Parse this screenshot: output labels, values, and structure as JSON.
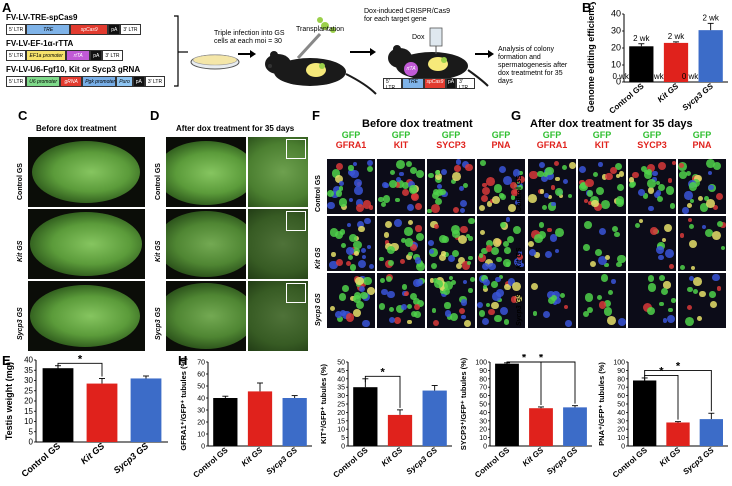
{
  "panels": {
    "A": "A",
    "B": "B",
    "C": "C",
    "D": "D",
    "E": "E",
    "F": "F",
    "G": "G",
    "H": "H"
  },
  "panelA": {
    "construct1_title": "FV-LV-TRE-spCas9",
    "construct2_title": "FV-LV-EF-1α-rTTA",
    "construct3_title": "FV-LV-U6-Fgf10, Kit or Sycp3 gRNA",
    "ltr5": "5' LTR",
    "ltr3": "3' LTR",
    "tre": "TRE",
    "spcas9": "spCas9",
    "pa": "pA",
    "ef1a": "EF1a promoter",
    "rtta": "rtTA",
    "u6": "U6 promoter",
    "grna": "gRNA",
    "pgk": "Pgk promoter",
    "puro": "Puro",
    "infection_text": "Triple infection into GS cells at each moi = 30",
    "transplantation": "Transplantation",
    "dox_text": "Dox-induced CRISPR/Cas9 for each target gene",
    "dox": "Dox",
    "rtta_label": "rtTA",
    "analysis_text": "Analysis of colony formation and spermatogenesis after dox treatmetnt for 35 days"
  },
  "panelC": {
    "title": "Before dox treatment",
    "rows": [
      "Control GS",
      "Kit GS",
      "Sycp3 GS"
    ]
  },
  "panelD": {
    "title": "After dox treatment for 35 days",
    "rows": [
      "Control GS",
      "Kit GS",
      "Sycp3 GS"
    ]
  },
  "panelF": {
    "title": "Before dox treatment"
  },
  "panelG": {
    "title": "After dox treatment for 35 days"
  },
  "stain_cols": [
    {
      "top": "GFP",
      "bottom": "GFRA1"
    },
    {
      "top": "GFP",
      "bottom": "KIT"
    },
    {
      "top": "GFP",
      "bottom": "SYCP3"
    },
    {
      "top": "GFP",
      "bottom": "PNA"
    }
  ],
  "fluo_rows": [
    "Control GS",
    "Kit GS",
    "Sycp3 GS"
  ],
  "colors": {
    "control": "#000000",
    "kit": "#e0221c",
    "sycp3": "#3c6cc8",
    "gfp_text": "#2fbf2f",
    "stain_text": "#e0221c"
  },
  "chart_data": [
    {
      "id": "B",
      "type": "bar",
      "categories": [
        "Control GS",
        "Kit GS",
        "Sycp3 GS"
      ],
      "series": [
        {
          "values": [
            21,
            23,
            30.5
          ]
        }
      ],
      "errors": [
        1.5,
        0.6,
        4
      ],
      "ylabel": "Genome editing efficiency (%)",
      "ylim": [
        0,
        40
      ],
      "yticks": [
        0,
        10,
        20,
        30,
        40
      ],
      "annotations_top": [
        "2 wk",
        "2 wk",
        "2 wk"
      ],
      "annotations_zero": [
        "0 wk",
        "0 wk",
        "0 wk"
      ]
    },
    {
      "id": "E",
      "type": "bar",
      "categories": [
        "Control GS",
        "Kit GS",
        "Sycp3 GS"
      ],
      "series": [
        {
          "values": [
            36,
            28.5,
            31
          ]
        }
      ],
      "errors": [
        1.2,
        2.5,
        1.2
      ],
      "ylabel": "Testis weight (mg)",
      "ylim": [
        0,
        40
      ],
      "yticks": [
        0,
        5,
        10,
        15,
        20,
        25,
        30,
        35,
        40
      ],
      "significance": [
        {
          "from": 0,
          "to": 1,
          "label": "*"
        }
      ]
    },
    {
      "id": "H1",
      "type": "bar",
      "categories": [
        "Control GS",
        "Kit GS",
        "Sycp3 GS"
      ],
      "series": [
        {
          "values": [
            40,
            45.5,
            40
          ]
        }
      ],
      "errors": [
        1.5,
        7,
        2
      ],
      "ylabel": "GFRA1⁺/GFP⁺ tubules (%)",
      "ylim": [
        0,
        70
      ],
      "yticks": [
        0,
        10,
        20,
        30,
        40,
        50,
        60,
        70
      ]
    },
    {
      "id": "H2",
      "type": "bar",
      "categories": [
        "Control GS",
        "Kit GS",
        "Sycp3 GS"
      ],
      "series": [
        {
          "values": [
            35,
            18.5,
            33
          ]
        }
      ],
      "errors": [
        5,
        3,
        3
      ],
      "ylabel": "KIT⁺/GFP⁺ tubules (%)",
      "ylim": [
        0,
        50
      ],
      "yticks": [
        0,
        5,
        10,
        15,
        20,
        25,
        30,
        35,
        40,
        45,
        50
      ],
      "significance": [
        {
          "from": 0,
          "to": 1,
          "label": "*"
        }
      ]
    },
    {
      "id": "H3",
      "type": "bar",
      "categories": [
        "Control GS",
        "Kit GS",
        "Sycp3 GS"
      ],
      "series": [
        {
          "values": [
            98,
            45,
            46
          ]
        }
      ],
      "errors": [
        1,
        1.5,
        2
      ],
      "ylabel": "SYCP3⁺/GFP⁺ tubules (%)",
      "ylim": [
        0,
        100
      ],
      "yticks": [
        0,
        10,
        20,
        30,
        40,
        50,
        60,
        70,
        80,
        90,
        100
      ],
      "significance": [
        {
          "from": 0,
          "to": 1,
          "label": "*"
        },
        {
          "from": 0,
          "to": 2,
          "label": "*"
        }
      ]
    },
    {
      "id": "H4",
      "type": "bar",
      "categories": [
        "Control GS",
        "Kit GS",
        "Sycp3 GS"
      ],
      "series": [
        {
          "values": [
            78,
            28,
            32
          ]
        }
      ],
      "errors": [
        3,
        1,
        7
      ],
      "ylabel": "PNA⁺/GFP⁺ tubules (%)",
      "ylim": [
        0,
        100
      ],
      "yticks": [
        0,
        10,
        20,
        30,
        40,
        50,
        60,
        70,
        80,
        90,
        100
      ],
      "significance": [
        {
          "from": 0,
          "to": 1,
          "label": "*"
        },
        {
          "from": 0,
          "to": 2,
          "label": "*"
        }
      ]
    }
  ]
}
